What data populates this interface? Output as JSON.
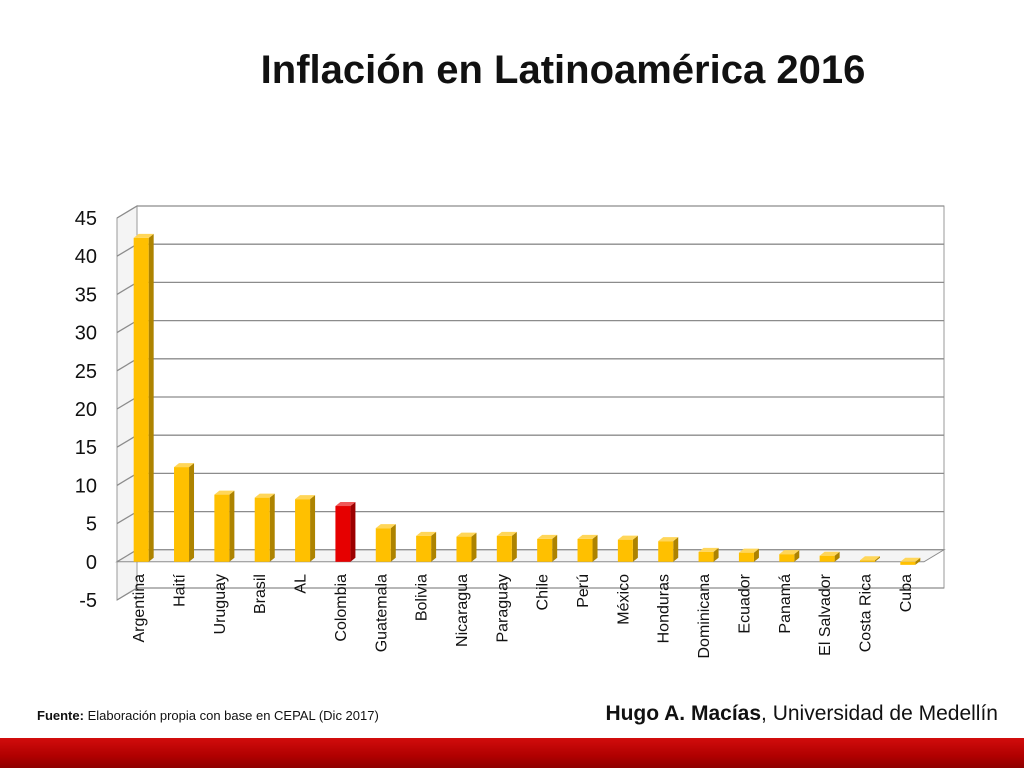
{
  "title": "Inflación en Latinoamérica 2016",
  "source_label": "Fuente:",
  "source_text": "Elaboración propia con base en CEPAL (Dic 2017)",
  "author_name": "Hugo A. Macías",
  "author_affiliation": ", Universidad de Medellín",
  "colors": {
    "bar": "#ffc000",
    "highlight": "#e60000",
    "footer": "#c00000"
  },
  "chart_data": {
    "type": "bar",
    "title": "",
    "xlabel": "",
    "ylabel": "",
    "ylim": [
      -5,
      45
    ],
    "yticks": [
      "-5",
      "0",
      "5",
      "10",
      "15",
      "20",
      "25",
      "30",
      "35",
      "40",
      "45"
    ],
    "grid": true,
    "legend": "none",
    "highlight_category": "Colombia",
    "categories": [
      "Argentina",
      "Haití",
      "Uruguay",
      "Brasil",
      "AL",
      "Colombia",
      "Guatemala",
      "Bolivia",
      "Nicaragua",
      "Paraguay",
      "Chile",
      "Perú",
      "México",
      "Honduras",
      "Dominicana",
      "Ecuador",
      "Panamá",
      "El Salvador",
      "Costa Rica",
      "Cuba"
    ],
    "values": [
      42.4,
      12.4,
      8.8,
      8.4,
      8.2,
      7.3,
      4.4,
      3.4,
      3.3,
      3.4,
      3.0,
      3.0,
      2.9,
      2.7,
      1.3,
      1.2,
      1.0,
      0.8,
      0.2,
      -0.4
    ]
  }
}
